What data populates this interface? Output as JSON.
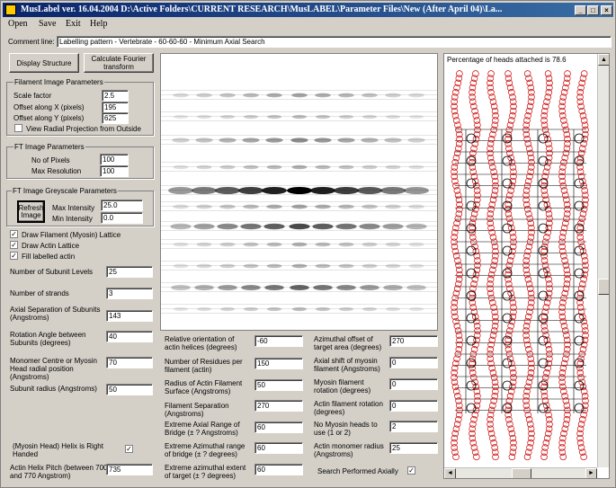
{
  "window": {
    "title": "MusLabel ver. 16.04.2004  D:\\Active Folders\\CURRENT RESEARCH\\MusLABEL\\Parameter Files\\New (After April 04)\\La...",
    "controls": [
      "_",
      "□",
      "×"
    ]
  },
  "menu": [
    "Open",
    "Save",
    "Exit",
    "Help"
  ],
  "comment": {
    "label": "Comment line:",
    "value": "Labelling pattern - Vertebrate - 60-60-60 - Minimum Axial Search"
  },
  "buttons": {
    "display_structure": "Display Structure",
    "calc_fourier": "Calculate  Fourier transform",
    "refresh_image": "Refresh Image"
  },
  "filament_params": {
    "title": "Filament Image Parameters",
    "scale_label": "Scale factor",
    "scale_value": "2.5",
    "offx_label": "Offset along X (pixels)",
    "offx_value": "195",
    "offy_label": "Offset along Y (pixels)",
    "offy_value": "625",
    "radial_label": "View Radial Projection from Outside"
  },
  "ft_params": {
    "title": "FT Image Parameters",
    "pixels_label": "No of Pixels",
    "pixels_value": "100",
    "res_label": "Max Resolution",
    "res_value": "100"
  },
  "greyscale": {
    "title": "FT Image Greyscale Parameters",
    "max_label": "Max Intensity",
    "max_value": "25.0",
    "min_label": "Min Intensity",
    "min_value": "0.0"
  },
  "checks": {
    "myosin_lattice": "Draw Filament (Myosin) Lattice",
    "actin_lattice": "Draw Actin Lattice",
    "fill_actin": "Fill labelled actin",
    "check_mark": "✓"
  },
  "left_fields": [
    {
      "label": "Number of Subunit Levels",
      "value": "25"
    },
    {
      "label": "Number of strands",
      "value": "3"
    },
    {
      "label": "Axial Separation of Subunits (Angstroms)",
      "value": "143"
    },
    {
      "label": "Rotation Angle between Subunits (degrees)",
      "value": "40"
    },
    {
      "label": "Monomer Centre or Myosin Head radial position (Angstroms)",
      "value": "70"
    },
    {
      "label": "Subunit radius (Angstroms)",
      "value": "50"
    }
  ],
  "helix": {
    "label": "(Myosin Head) Helix is Right Handed"
  },
  "pitch": {
    "label": "Actin Helix Pitch (between 700 and 770 Angstrom)",
    "value": "735"
  },
  "mid_fields": [
    {
      "label": "Relative orientation of actin helices (degrees)",
      "value": "-60"
    },
    {
      "label": "Number of Residues per filament (actin)",
      "value": "150"
    },
    {
      "label": "Radius of Actin Filament Surface (Angstroms)",
      "value": "50"
    },
    {
      "label": "Filament Separation (Angstroms)",
      "value": "270"
    },
    {
      "label": "Extreme Axial Range of Bridge (± ? Angstroms)",
      "value": "60"
    },
    {
      "label": "Extreme Azimuthal range of bridge (± ? degrees)",
      "value": "60"
    },
    {
      "label": "Extreme azimuthal extent of target (± ? degrees)",
      "value": "60"
    }
  ],
  "right_fields": [
    {
      "label": "Azimuthal offset of target area (degrees)",
      "value": "270"
    },
    {
      "label": "Axial shift of myosin filament (Angstroms)",
      "value": "0"
    },
    {
      "label": "Myosin filament rotation (degrees)",
      "value": "0"
    },
    {
      "label": "Actin filament rotation (degrees)",
      "value": "0"
    },
    {
      "label": "No Myosin heads to use (1 or 2)",
      "value": "2"
    },
    {
      "label": "Actin monomer radius (Angstroms)",
      "value": "25"
    }
  ],
  "search": {
    "label": "Search Performed Axially"
  },
  "structure_panel": {
    "heads_text": "Percentage of heads attached is  78.6"
  }
}
